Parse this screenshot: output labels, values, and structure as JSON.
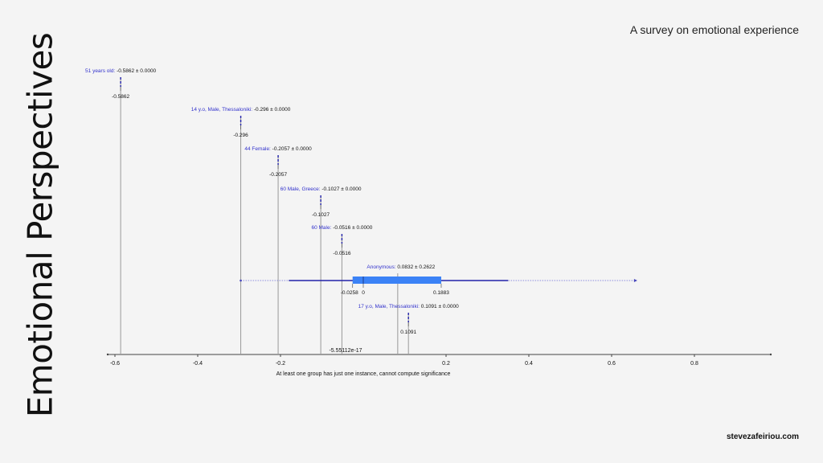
{
  "slide": {
    "title": "Emotional Perspectives",
    "subtitle": "A survey on emotional experience",
    "site": "stevezafeiriou.com"
  },
  "chart_data": {
    "type": "box",
    "orientation": "horizontal",
    "xlabel": "At least one group has just one instance, cannot compute significance",
    "xlim": [
      -0.6,
      1.0
    ],
    "xticks": [
      -0.6,
      -0.4,
      -0.2,
      0.2,
      0.4,
      0.6,
      0.8
    ],
    "xtick_labels": [
      "-0.6",
      "-0.4",
      "-0.2",
      "0.2",
      "0.4",
      "0.6",
      "0.8"
    ],
    "zero_annotation": "-5.55112e-17",
    "colors": {
      "box": "#3b82f6",
      "group_label": "#3333cc",
      "whisker": "#2222aa",
      "line": "#999999"
    },
    "groups": [
      {
        "name": "51 years old:",
        "stat": "-0.5862 ± 0.0000",
        "mean": -0.5862,
        "median_label": "-0.5862"
      },
      {
        "name": "14 y.o, Male, Thessaloniki:",
        "stat": "-0.296 ± 0.0000",
        "mean": -0.296,
        "median_label": "-0.296"
      },
      {
        "name": "44 Female:",
        "stat": "-0.2057 ± 0.0000",
        "mean": -0.2057,
        "median_label": "-0.2057"
      },
      {
        "name": "60 Male, Greece:",
        "stat": "-0.1027 ± 0.0000",
        "mean": -0.1027,
        "median_label": "-0.1027"
      },
      {
        "name": "60 Male:",
        "stat": "-0.0516 ± 0.0000",
        "mean": -0.0516,
        "median_label": "-0.0516"
      },
      {
        "name": "Anonymous:",
        "stat": "0.0832 ± 0.2622",
        "mean": 0.0832,
        "box": {
          "q1": -0.0258,
          "median": 0.0,
          "q3": 0.1883
        },
        "box_labels": [
          "-0.0258",
          "0",
          "0.1883"
        ],
        "whisker": [
          -0.18,
          0.35
        ],
        "range": [
          -0.296,
          0.66
        ]
      },
      {
        "name": "17 y.o, Male, Thessaloniki:",
        "stat": "0.1091 ± 0.0000",
        "mean": 0.1091,
        "median_label": "0.1091"
      }
    ]
  }
}
